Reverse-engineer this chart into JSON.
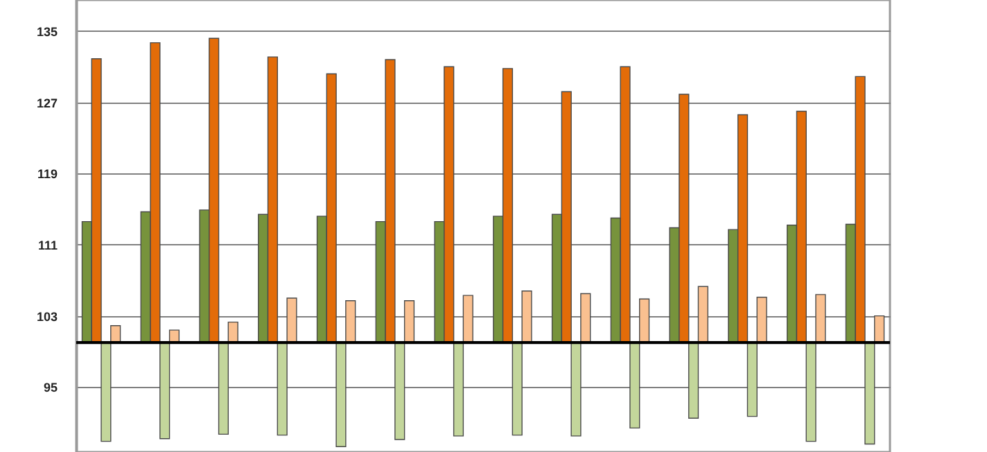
{
  "chart_data": {
    "type": "bar",
    "categories": [
      null,
      null,
      null,
      null,
      null,
      null,
      null,
      null,
      null,
      null,
      null,
      null,
      null,
      null
    ],
    "series": [
      {
        "color": "#77933c",
        "base": [
          100,
          100,
          100,
          100,
          100,
          100,
          100,
          100,
          100,
          100,
          100,
          100,
          100,
          100
        ],
        "values": [
          13.6,
          14.7,
          14.9,
          14.4,
          14.2,
          13.6,
          13.6,
          14.2,
          14.4,
          14.0,
          12.9,
          12.7,
          13.2,
          13.3
        ]
      },
      {
        "color": "#e36c09",
        "base": [
          100,
          100,
          100,
          100,
          100,
          100,
          100,
          100,
          100,
          100,
          100,
          100,
          100,
          100
        ],
        "values": [
          31.9,
          33.7,
          34.2,
          32.1,
          30.2,
          31.8,
          31.0,
          30.8,
          28.2,
          31.0,
          27.9,
          25.6,
          26.0,
          29.9
        ]
      },
      {
        "color": "#c3d69b",
        "base": [
          100,
          100,
          100,
          100,
          100,
          100,
          100,
          100,
          100,
          100,
          100,
          100,
          100,
          100
        ],
        "values": [
          -11.1,
          -10.8,
          -10.3,
          -10.4,
          -11.7,
          -10.9,
          -10.5,
          -10.4,
          -10.5,
          -9.6,
          -8.5,
          -8.3,
          -11.1,
          -11.4
        ]
      },
      {
        "color": "#fac090",
        "base": [
          100,
          100,
          100,
          100,
          100,
          100,
          100,
          100,
          100,
          100,
          100,
          100,
          100,
          100
        ],
        "values": [
          1.9,
          1.4,
          2.3,
          5.0,
          4.7,
          4.7,
          5.3,
          5.8,
          5.5,
          4.9,
          6.3,
          5.1,
          5.4,
          3.0
        ]
      }
    ],
    "ylim": [
      87.7,
      138.5
    ],
    "yticks": [
      95,
      103,
      111,
      119,
      127,
      135
    ],
    "ref_lines": [
      {
        "axis": "y",
        "value": 100,
        "color": "#000000"
      }
    ],
    "grid": "y",
    "tick_labels": "y",
    "legend": false
  }
}
